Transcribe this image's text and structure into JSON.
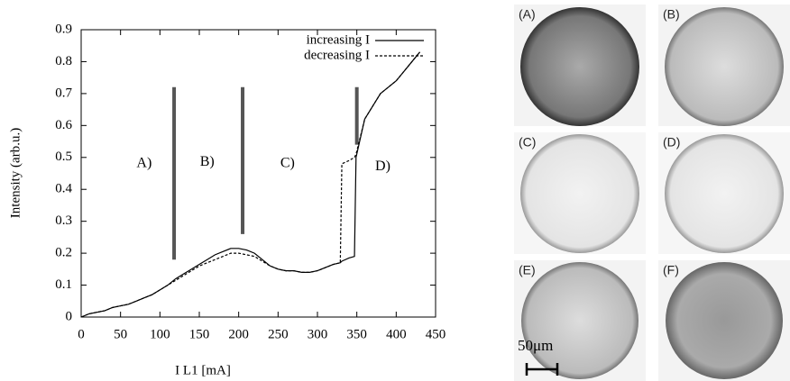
{
  "chart_data": {
    "type": "line",
    "xlabel": "I L1 [mA]",
    "ylabel": "Intensity (arb.u.)",
    "x": [
      0,
      10,
      20,
      30,
      40,
      50,
      60,
      70,
      80,
      90,
      100,
      110,
      120,
      130,
      140,
      150,
      160,
      170,
      180,
      190,
      200,
      210,
      220,
      230,
      240,
      250,
      260,
      270,
      280,
      290,
      300,
      310,
      320,
      329,
      331,
      340,
      347,
      349,
      360,
      370,
      380,
      390,
      400,
      410,
      420,
      430
    ],
    "series": [
      {
        "name": "increasing I",
        "color": "#000000",
        "dash": "none",
        "values": [
          0,
          0.01,
          0.015,
          0.02,
          0.03,
          0.035,
          0.04,
          0.05,
          0.06,
          0.07,
          0.085,
          0.1,
          0.12,
          0.135,
          0.15,
          0.165,
          0.18,
          0.195,
          0.205,
          0.215,
          0.215,
          0.21,
          0.2,
          0.18,
          0.16,
          0.15,
          0.145,
          0.145,
          0.14,
          0.14,
          0.145,
          0.155,
          0.165,
          0.17,
          0.175,
          0.185,
          0.19,
          0.5,
          0.62,
          0.66,
          0.7,
          0.72,
          0.74,
          0.77,
          0.8,
          0.83
        ]
      },
      {
        "name": "decreasing I",
        "color": "#000000",
        "dash": "3,2",
        "values": [
          0,
          0.01,
          0.015,
          0.02,
          0.03,
          0.035,
          0.04,
          0.05,
          0.06,
          0.07,
          0.085,
          0.1,
          0.115,
          0.13,
          0.145,
          0.16,
          0.17,
          0.18,
          0.19,
          0.2,
          0.2,
          0.195,
          0.19,
          0.175,
          0.16,
          0.15,
          0.145,
          0.145,
          0.14,
          0.14,
          0.145,
          0.155,
          0.165,
          0.17,
          0.48,
          0.49,
          0.5,
          0.51,
          0.62,
          0.66,
          0.7,
          0.72,
          0.74,
          0.77,
          0.8,
          0.83
        ]
      }
    ],
    "xlim": [
      0,
      450
    ],
    "xticks": [
      0,
      50,
      100,
      150,
      200,
      250,
      300,
      350,
      400,
      450
    ],
    "ylim": [
      0,
      0.9
    ],
    "yticks": [
      0,
      0.1,
      0.2,
      0.3,
      0.4,
      0.5,
      0.6,
      0.7,
      0.8,
      0.9
    ],
    "legend": "upper right",
    "region_boundaries": [
      118,
      205,
      350
    ],
    "region_labels": [
      "A)",
      "B)",
      "C)",
      "D)"
    ],
    "panels": [
      "(A)",
      "(B)",
      "(C)",
      "(D)",
      "(E)",
      "(F)"
    ],
    "scale_bar": "50μm"
  }
}
